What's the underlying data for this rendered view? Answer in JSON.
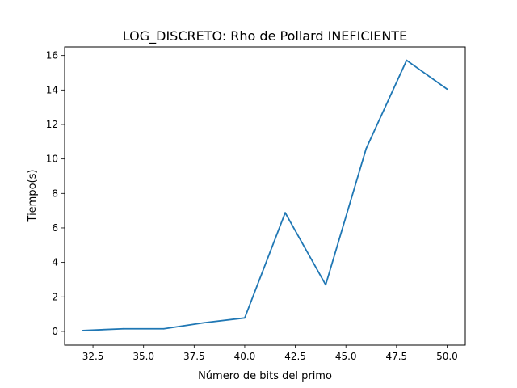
{
  "chart_data": {
    "type": "line",
    "title": "LOG_DISCRETO: Rho de Pollard INEFICIENTE",
    "xlabel": "Número de bits del primo",
    "ylabel": "Tiempo(s)",
    "xlim": [
      31.1,
      50.9
    ],
    "ylim": [
      -0.8,
      16.5
    ],
    "grid": false,
    "x": [
      32,
      34,
      36,
      38,
      40,
      42,
      44,
      46,
      48,
      50
    ],
    "series": [
      {
        "color": "#1f77b4",
        "values": [
          0.05,
          0.15,
          0.15,
          0.5,
          0.78,
          6.88,
          2.7,
          10.6,
          15.72,
          14.05
        ]
      }
    ],
    "xticks": [
      "32.5",
      "35.0",
      "37.5",
      "40.0",
      "42.5",
      "45.0",
      "47.5",
      "50.0"
    ],
    "yticks": [
      "0",
      "2",
      "4",
      "6",
      "8",
      "10",
      "12",
      "14",
      "16"
    ]
  }
}
